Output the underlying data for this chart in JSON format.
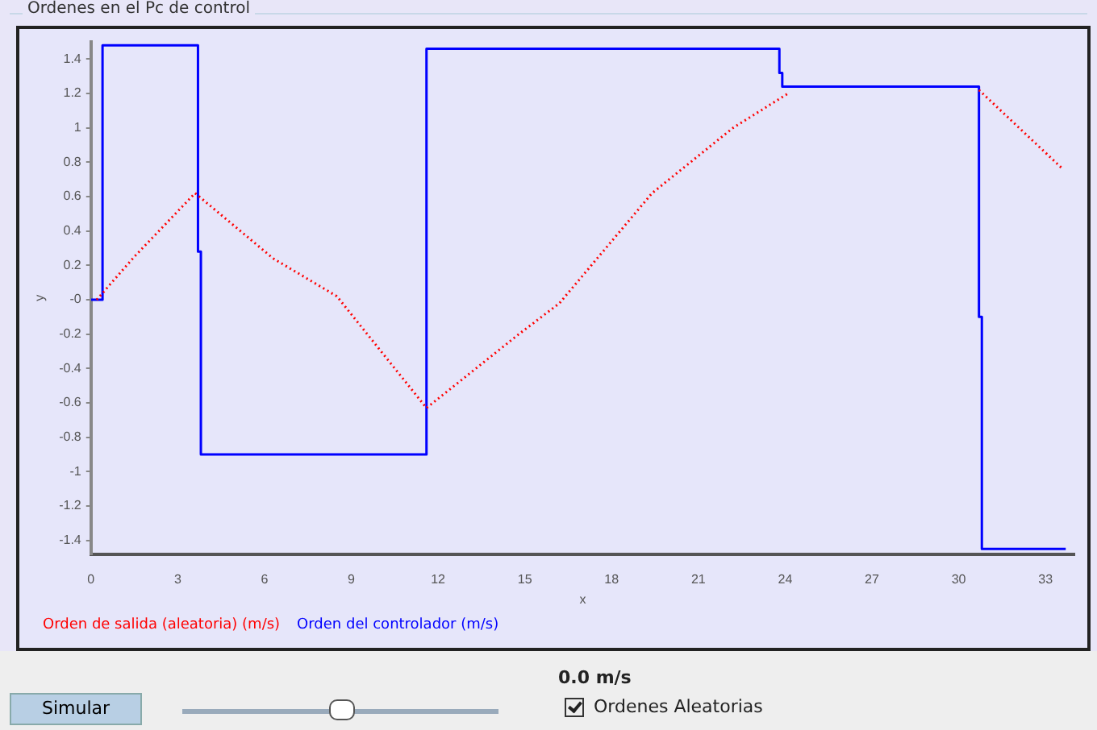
{
  "chart_data": {
    "type": "line",
    "title": "Ordenes en el Pc de control",
    "xlabel": "x",
    "ylabel": "y",
    "xlim": [
      0,
      34
    ],
    "xticks": [
      0,
      3,
      6,
      9,
      12,
      15,
      18,
      21,
      24,
      27,
      30,
      33
    ],
    "ylim": [
      -1.48,
      1.5
    ],
    "yticks": [
      1.4,
      1.2,
      1,
      0.8,
      0.6,
      0.4,
      0.2,
      {
        "value": 0,
        "label": "-0"
      },
      -0.2,
      -0.4,
      -0.6,
      -0.8,
      -1,
      -1.2,
      -1.4
    ],
    "grid": false,
    "legend": "bottom",
    "marker": "none",
    "series": [
      {
        "name": "Orden de salida (aleatoria) (m/s)",
        "color": "#ff0000",
        "type": "line",
        "line_style": "dotted",
        "x": [
          0.2,
          1.5,
          3.6,
          6.3,
          8.5,
          11.6,
          14.8,
          16.2,
          19.4,
          22.2,
          24.1,
          27.4,
          30.7,
          33.6
        ],
        "values": [
          0,
          0.25,
          0.62,
          0.24,
          0.02,
          -0.63,
          -0.2,
          -0.02,
          0.62,
          1.0,
          1.2,
          null,
          1.22,
          0.76
        ]
      },
      {
        "name": "Orden del controlador (m/s)",
        "color": "#0000ff",
        "type": "step",
        "x": [
          0,
          0.4,
          3.7,
          3.8,
          11.6,
          23.8,
          23.9,
          30.7,
          30.8,
          33.7
        ],
        "values": [
          0,
          1.48,
          0.28,
          -0.9,
          1.46,
          1.32,
          1.24,
          -0.1,
          -1.45,
          -1.45
        ]
      }
    ],
    "annotations": [
      "0.0 m/s",
      "Simular",
      "Ordenes Aleatorias"
    ]
  }
}
